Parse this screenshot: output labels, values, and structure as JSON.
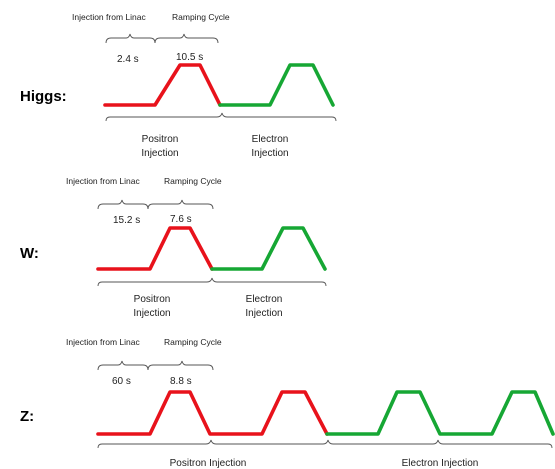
{
  "labels": {
    "injection_from_linac": "Injection from Linac",
    "ramping_cycle": "Ramping Cycle",
    "positron": "Positron",
    "electron": "Electron",
    "injection": "Injection",
    "positron_injection": "Positron Injection",
    "electron_injection": "Electron Injection"
  },
  "modes": [
    {
      "name": "Higgs:",
      "injection_time": "2.4 s",
      "ramping_time": "10.5 s"
    },
    {
      "name": "W:",
      "injection_time": "15.2 s",
      "ramping_time": "7.6 s"
    },
    {
      "name": "Z:",
      "injection_time": "60 s",
      "ramping_time": "8.8 s"
    }
  ],
  "colors": {
    "positron": "#e8121b",
    "electron": "#16a734"
  }
}
